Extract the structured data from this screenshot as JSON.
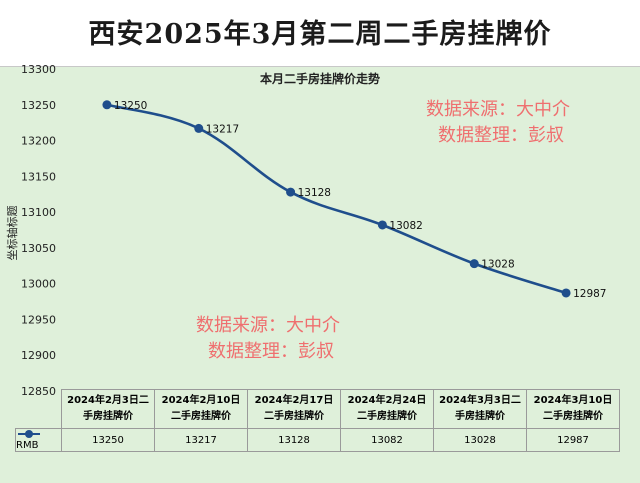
{
  "title": "西安2025年3月第二周二手房挂牌价",
  "watermark": {
    "line1": "数据来源：大中介",
    "line2": "数据整理：彭叔"
  },
  "colors": {
    "line": "#1f4e8c",
    "watermark": "#ef6f6f",
    "plot_bg": "#dff0da"
  },
  "chart_data": {
    "type": "line",
    "title": "本月二手房挂牌价走势",
    "xlabel": "",
    "ylabel": "坐标轴标题",
    "ylim": [
      12850,
      13300
    ],
    "yticks": [
      12850,
      12900,
      12950,
      13000,
      13050,
      13100,
      13150,
      13200,
      13250,
      13300
    ],
    "grid": false,
    "categories": [
      "2024年2月3日二手房挂牌价",
      "2024年2月10日二手房挂牌价",
      "2024年2月17日二手房挂牌价",
      "2024年2月24日二手房挂牌价",
      "2024年3月3日二手房挂牌价",
      "2024年3月10日二手房挂牌价"
    ],
    "category_lines": [
      [
        "2024年2月3日二",
        "手房挂牌价"
      ],
      [
        "2024年2月10日",
        "二手房挂牌价"
      ],
      [
        "2024年2月17日",
        "二手房挂牌价"
      ],
      [
        "2024年2月24日",
        "二手房挂牌价"
      ],
      [
        "2024年3月3日二",
        "手房挂牌价"
      ],
      [
        "2024年3月10日",
        "二手房挂牌价"
      ]
    ],
    "series": [
      {
        "name": "RMB",
        "values": [
          13250,
          13217,
          13128,
          13082,
          13028,
          12987
        ]
      }
    ],
    "legend": "data-table"
  }
}
